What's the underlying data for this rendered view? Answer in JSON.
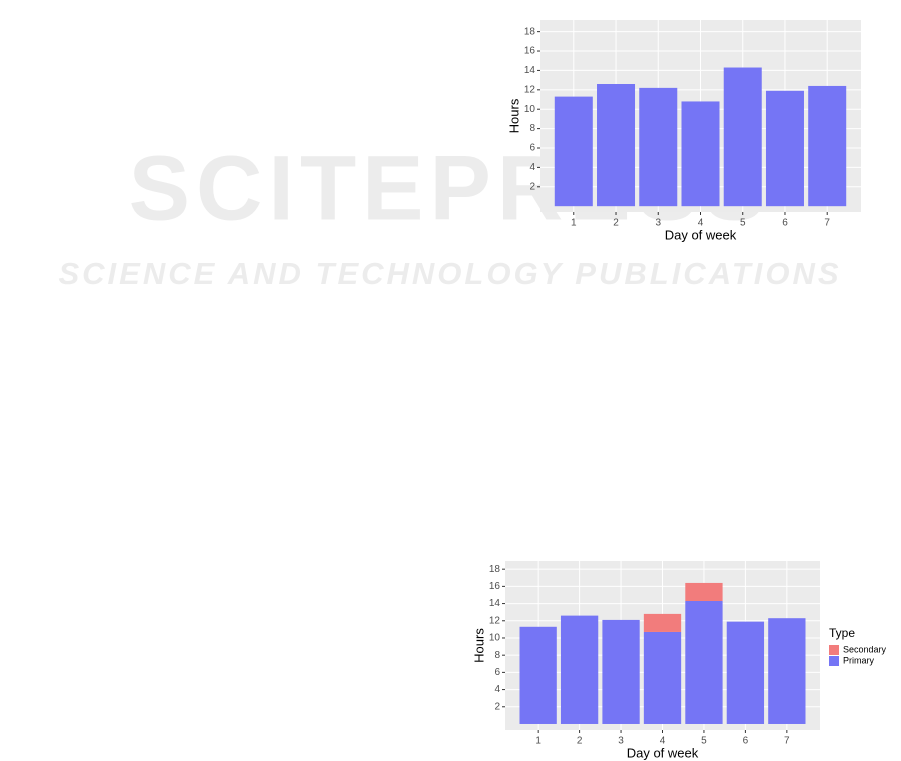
{
  "watermark": {
    "title": "SCITEPRESS",
    "subtitle": "SCIENCE AND TECHNOLOGY PUBLICATIONS"
  },
  "chart_data": [
    {
      "type": "bar",
      "x_label": "Day of week",
      "y_label": "Hours",
      "categories": [
        "1",
        "2",
        "3",
        "4",
        "5",
        "6",
        "7"
      ],
      "values": [
        11.3,
        12.6,
        12.2,
        10.8,
        14.3,
        11.9,
        12.4
      ],
      "color": "#7575f5",
      "ylim": [
        -0.6,
        19.2
      ],
      "yticks": [
        2,
        4,
        6,
        8,
        10,
        12,
        14,
        16,
        18
      ],
      "grid": true
    },
    {
      "type": "stacked_bar",
      "x_label": "Day of week",
      "y_label": "Hours",
      "categories": [
        "1",
        "2",
        "3",
        "4",
        "5",
        "6",
        "7"
      ],
      "series": [
        {
          "name": "Primary",
          "color": "#7575f5",
          "values": [
            11.3,
            12.6,
            12.1,
            10.7,
            14.3,
            11.9,
            12.3
          ]
        },
        {
          "name": "Secondary",
          "color": "#f27c7c",
          "values": [
            0,
            0,
            0,
            2.1,
            2.1,
            0,
            0
          ]
        }
      ],
      "legend_title": "Type",
      "ylim": [
        -0.7,
        18.95
      ],
      "yticks": [
        2,
        4,
        6,
        8,
        10,
        12,
        14,
        16,
        18
      ],
      "grid": true
    }
  ]
}
